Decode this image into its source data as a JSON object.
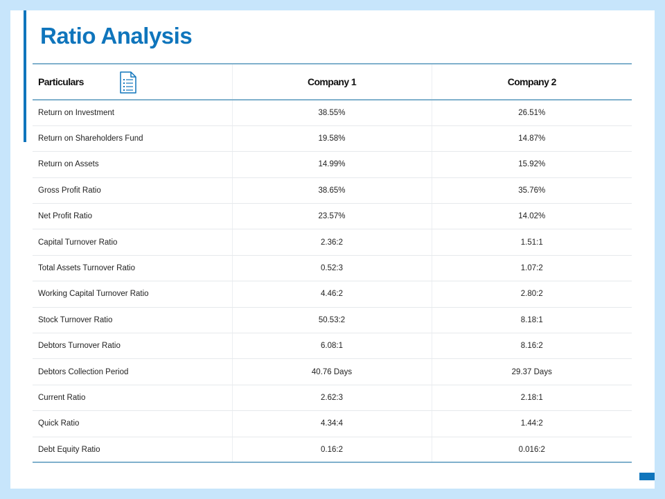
{
  "slide": {
    "title": "Ratio Analysis"
  },
  "table": {
    "headers": [
      "Particulars",
      "Company 1",
      "Company 2"
    ],
    "header_icon": "document-list-icon",
    "rows": [
      [
        "Return on Investment",
        "38.55%",
        "26.51%"
      ],
      [
        "Return on Shareholders Fund",
        "19.58%",
        "14.87%"
      ],
      [
        "Return on Assets",
        "14.99%",
        "15.92%"
      ],
      [
        "Gross Profit Ratio",
        "38.65%",
        "35.76%"
      ],
      [
        "Net Profit Ratio",
        "23.57%",
        "14.02%"
      ],
      [
        "Capital Turnover Ratio",
        "2.36:2",
        "1.51:1"
      ],
      [
        "Total Assets Turnover Ratio",
        "0.52:3",
        "1.07:2"
      ],
      [
        "Working Capital Turnover Ratio",
        "4.46:2",
        "2.80:2"
      ],
      [
        "Stock Turnover Ratio",
        "50.53:2",
        "8.18:1"
      ],
      [
        "Debtors Turnover Ratio",
        "6.08:1",
        "8.16:2"
      ],
      [
        "Debtors Collection Period",
        "40.76 Days",
        "29.37 Days"
      ],
      [
        "Current Ratio",
        "2.62:3",
        "2.18:1"
      ],
      [
        "Quick Ratio",
        "4.34:4",
        "1.44:2"
      ],
      [
        "Debt Equity Ratio",
        "0.16:2",
        "0.016:2"
      ]
    ]
  },
  "colors": {
    "accent": "#0f75bc",
    "background": "#c7e5fb",
    "rule": "#7fb0cc"
  }
}
